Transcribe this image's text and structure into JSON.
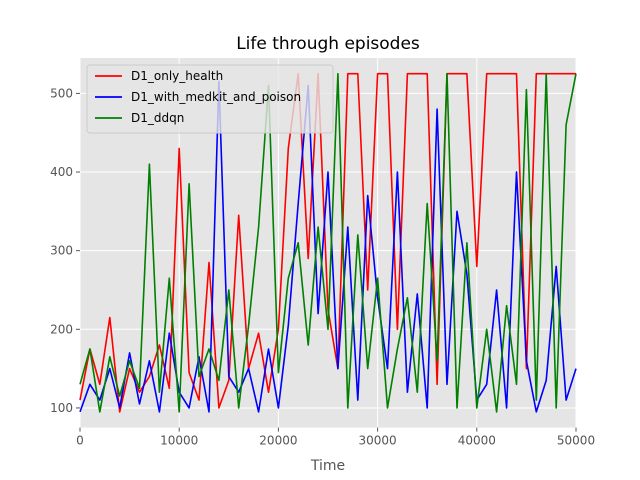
{
  "chart_data": {
    "type": "line",
    "title": "Life through episodes",
    "xlabel": "Time",
    "ylabel": "",
    "xlim": [
      0,
      50000
    ],
    "ylim": [
      75,
      545
    ],
    "xticks": [
      0,
      10000,
      20000,
      30000,
      40000,
      50000
    ],
    "yticks": [
      100,
      200,
      300,
      400,
      500
    ],
    "grid": true,
    "legend_position": "top-left",
    "x": [
      0,
      1000,
      2000,
      3000,
      4000,
      5000,
      6000,
      7000,
      8000,
      9000,
      10000,
      11000,
      12000,
      13000,
      14000,
      15000,
      16000,
      17000,
      18000,
      19000,
      20000,
      21000,
      22000,
      23000,
      24000,
      25000,
      26000,
      27000,
      28000,
      29000,
      30000,
      31000,
      32000,
      33000,
      34000,
      35000,
      36000,
      37000,
      38000,
      39000,
      40000,
      41000,
      42000,
      43000,
      44000,
      45000,
      46000,
      47000,
      48000,
      49000,
      50000
    ],
    "series": [
      {
        "name": "D1_only_health",
        "color": "#ff0000",
        "values": [
          110,
          175,
          130,
          215,
          95,
          150,
          120,
          140,
          180,
          125,
          430,
          145,
          110,
          285,
          100,
          135,
          345,
          150,
          195,
          120,
          200,
          430,
          525,
          290,
          525,
          225,
          150,
          525,
          525,
          250,
          525,
          525,
          200,
          525,
          525,
          525,
          130,
          525,
          525,
          525,
          280,
          525,
          525,
          525,
          525,
          150,
          525,
          525,
          525,
          525,
          525
        ]
      },
      {
        "name": "D1_with_medkit_and_poison",
        "color": "#0000ff",
        "values": [
          95,
          130,
          110,
          150,
          100,
          170,
          105,
          160,
          95,
          195,
          120,
          100,
          165,
          95,
          515,
          140,
          120,
          150,
          95,
          175,
          100,
          205,
          360,
          510,
          220,
          400,
          150,
          330,
          110,
          370,
          240,
          150,
          400,
          120,
          245,
          100,
          480,
          130,
          350,
          270,
          110,
          130,
          250,
          100,
          400,
          160,
          95,
          135,
          280,
          110,
          150
        ]
      },
      {
        "name": "D1_ddqn",
        "color": "#008000",
        "values": [
          130,
          175,
          95,
          165,
          115,
          160,
          125,
          410,
          120,
          265,
          95,
          385,
          140,
          175,
          135,
          250,
          100,
          205,
          330,
          510,
          145,
          265,
          310,
          180,
          330,
          200,
          525,
          100,
          320,
          150,
          265,
          100,
          175,
          240,
          120,
          360,
          160,
          525,
          100,
          310,
          100,
          200,
          95,
          230,
          130,
          505,
          110,
          525,
          100,
          460,
          525
        ]
      }
    ]
  }
}
